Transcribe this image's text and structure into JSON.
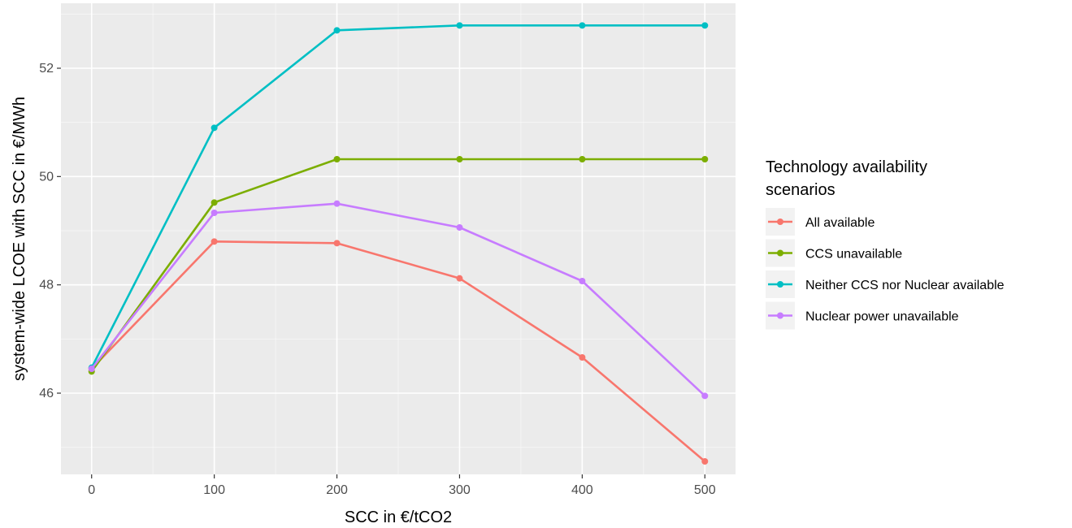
{
  "chart_data": {
    "type": "line",
    "xlabel": "SCC in €/tCO2",
    "ylabel": "system-wide LCOE with SCC in €/MWh",
    "x": [
      0,
      100,
      200,
      300,
      400,
      500
    ],
    "x_ticks": [
      0,
      100,
      200,
      300,
      400,
      500
    ],
    "y_ticks": [
      46,
      48,
      50,
      52
    ],
    "xlim": [
      -25,
      525
    ],
    "ylim": [
      44.5,
      53.2
    ],
    "grid": true,
    "legend": {
      "title_lines": [
        "Technology availability",
        "scenarios"
      ],
      "placement": "right"
    },
    "series": [
      {
        "name": "All available",
        "color": "#F8766D",
        "values": [
          46.45,
          48.8,
          48.77,
          48.12,
          46.66,
          44.74
        ]
      },
      {
        "name": "CCS unavailable",
        "color": "#7CAE00",
        "values": [
          46.4,
          49.52,
          50.32,
          50.32,
          50.32,
          50.32
        ]
      },
      {
        "name": "Neither CCS nor Nuclear available",
        "color": "#00BFC4",
        "values": [
          46.47,
          50.9,
          52.7,
          52.79,
          52.79,
          52.79
        ]
      },
      {
        "name": "Nuclear power unavailable",
        "color": "#C77CFF",
        "values": [
          46.45,
          49.33,
          49.5,
          49.06,
          48.07,
          45.95
        ]
      }
    ]
  }
}
